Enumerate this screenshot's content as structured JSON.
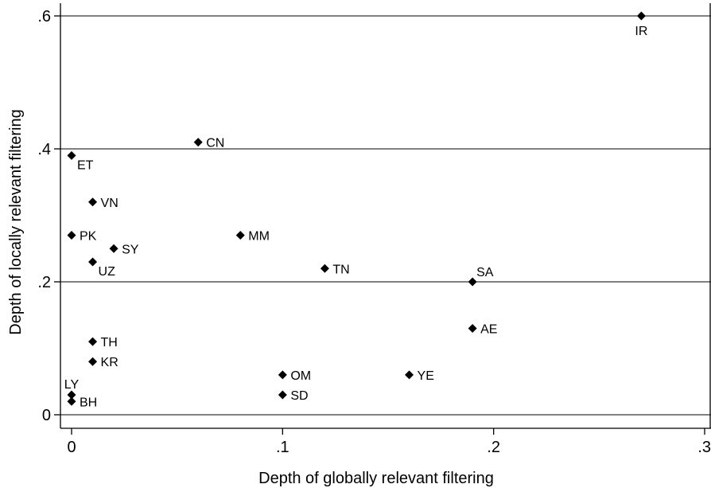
{
  "chart_data": {
    "type": "scatter",
    "title": "",
    "xlabel": "Depth of globally relevant filtering",
    "ylabel": "Depth of locally relevant filtering",
    "xlim": [
      0,
      0.3
    ],
    "ylim": [
      0,
      0.6
    ],
    "x_ticks": [
      {
        "value": 0,
        "label": "0"
      },
      {
        "value": 0.1,
        "label": ".1"
      },
      {
        "value": 0.2,
        "label": ".2"
      },
      {
        "value": 0.3,
        "label": ".3"
      }
    ],
    "y_ticks": [
      {
        "value": 0,
        "label": "0"
      },
      {
        "value": 0.2,
        "label": ".2"
      },
      {
        "value": 0.4,
        "label": ".4"
      },
      {
        "value": 0.6,
        "label": ".6"
      }
    ],
    "grid": "horizontal",
    "marker": "diamond",
    "points": [
      {
        "label": "IR",
        "x": 0.27,
        "y": 0.6,
        "label_pos": "below"
      },
      {
        "label": "CN",
        "x": 0.06,
        "y": 0.41,
        "label_pos": "right"
      },
      {
        "label": "ET",
        "x": 0.0,
        "y": 0.39,
        "label_pos": "below-right"
      },
      {
        "label": "VN",
        "x": 0.01,
        "y": 0.32,
        "label_pos": "right"
      },
      {
        "label": "PK",
        "x": 0.0,
        "y": 0.27,
        "label_pos": "right"
      },
      {
        "label": "SY",
        "x": 0.02,
        "y": 0.25,
        "label_pos": "right"
      },
      {
        "label": "MM",
        "x": 0.08,
        "y": 0.27,
        "label_pos": "right"
      },
      {
        "label": "UZ",
        "x": 0.01,
        "y": 0.23,
        "label_pos": "below-right"
      },
      {
        "label": "TN",
        "x": 0.12,
        "y": 0.22,
        "label_pos": "right"
      },
      {
        "label": "SA",
        "x": 0.19,
        "y": 0.2,
        "label_pos": "above-right"
      },
      {
        "label": "AE",
        "x": 0.19,
        "y": 0.13,
        "label_pos": "right"
      },
      {
        "label": "TH",
        "x": 0.01,
        "y": 0.11,
        "label_pos": "right"
      },
      {
        "label": "KR",
        "x": 0.01,
        "y": 0.08,
        "label_pos": "right"
      },
      {
        "label": "OM",
        "x": 0.1,
        "y": 0.06,
        "label_pos": "right"
      },
      {
        "label": "YE",
        "x": 0.16,
        "y": 0.06,
        "label_pos": "right"
      },
      {
        "label": "LY",
        "x": 0.0,
        "y": 0.03,
        "label_pos": "above"
      },
      {
        "label": "SD",
        "x": 0.1,
        "y": 0.03,
        "label_pos": "right"
      },
      {
        "label": "BH",
        "x": 0.0,
        "y": 0.02,
        "label_pos": "right"
      }
    ]
  }
}
